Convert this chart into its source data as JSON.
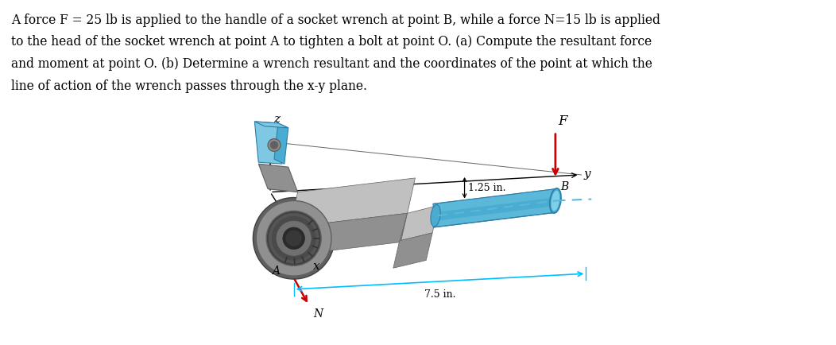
{
  "text_line1": "A force F = 25 lb is applied to the handle of a socket wrench at point B, while a force N=15 lb is applied",
  "text_line2": "to the head of the socket wrench at point A to tighten a bolt at point O. (a) Compute the resultant force",
  "text_line3": "and moment at point O. (b) Determine a wrench resultant and the coordinates of the point at which the",
  "text_line4": "line of action of the wrench passes through the x-y plane.",
  "fig_width": 10.52,
  "fig_height": 4.34,
  "dpi": 100,
  "blue_light": "#7EC8E3",
  "blue_mid": "#4AACD0",
  "blue_dark": "#2E7DA8",
  "gray_light": "#C0C0C0",
  "gray_mid": "#909090",
  "gray_dark": "#606060",
  "gray_darker": "#404040",
  "red_force": "#CC0000",
  "cyan_dim": "#00BFFF",
  "black": "#000000",
  "white": "#FFFFFF"
}
